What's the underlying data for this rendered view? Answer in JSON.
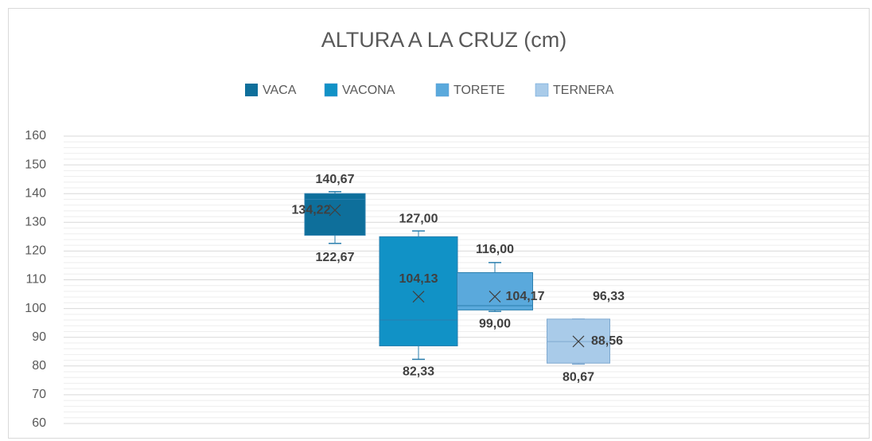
{
  "chart_data": {
    "type": "box",
    "title": "ALTURA A LA CRUZ (cm)",
    "ylim": [
      60,
      160
    ],
    "yticks": [
      60,
      70,
      80,
      90,
      100,
      110,
      120,
      130,
      140,
      150,
      160
    ],
    "grid": true,
    "minor_grid_divisions": 5,
    "legend": "top",
    "series": [
      {
        "name": "VACA",
        "color": "#0e6f9b",
        "min": 122.67,
        "q1": 125.5,
        "median": 138,
        "q3": 140,
        "max": 140.67,
        "mean": 134.22,
        "value_labels": {
          "max": "140,67",
          "mean": "134,22",
          "min": "122,67"
        }
      },
      {
        "name": "VACONA",
        "color": "#1192c6",
        "min": 82.33,
        "q1": 87,
        "median": 96,
        "q3": 125,
        "max": 127,
        "mean": 104.13,
        "value_labels": {
          "max": "127,00",
          "mean": "104,13",
          "min": "82,33"
        }
      },
      {
        "name": "TORETE",
        "color": "#5aa9dc",
        "min": 99,
        "q1": 99.5,
        "median": 101,
        "q3": 112.5,
        "max": 116,
        "mean": 104.17,
        "value_labels": {
          "max": "116,00",
          "mean": "104,17",
          "min": "99,00"
        }
      },
      {
        "name": "TERNERA",
        "color": "#a9cbe9",
        "min": 80.67,
        "q1": 81,
        "median": 88.5,
        "q3": 96.33,
        "max": 96.33,
        "mean": 88.56,
        "value_labels": {
          "max": "96,33",
          "mean": "88,56",
          "min": "80,67"
        }
      }
    ]
  }
}
